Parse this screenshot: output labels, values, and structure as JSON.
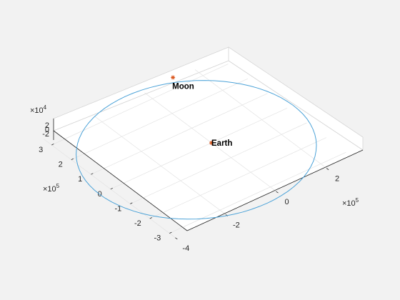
{
  "chart_data": {
    "type": "line3d",
    "title": "",
    "xlabel": "",
    "ylabel": "",
    "zlabel": "",
    "grid": true,
    "axes": {
      "x": {
        "multiplier": "×10",
        "exponent": "5",
        "ticks": [
          "-4",
          "-2",
          "0",
          "2"
        ],
        "tick_values": [
          -4,
          -2,
          0,
          2
        ],
        "range": [
          -4,
          3
        ]
      },
      "y": {
        "multiplier": "×10",
        "exponent": "5",
        "ticks": [
          "-3",
          "-2",
          "-1",
          "0",
          "1",
          "2",
          "3"
        ],
        "tick_values": [
          -3,
          -2,
          -1,
          0,
          1,
          2,
          3
        ],
        "range": [
          -3.4,
          3.4
        ]
      },
      "z": {
        "multiplier": "×10",
        "exponent": "4",
        "ticks": [
          "-2",
          "0",
          "2"
        ],
        "tick_values": [
          -2,
          0,
          2
        ],
        "range": [
          -3,
          3
        ]
      }
    },
    "series": [
      {
        "type": "orbit",
        "color": "#4DA3D8",
        "semi_major_axis": 3.84,
        "semi_minor_axis": 3.62,
        "units": "×10^5",
        "center": [
          -0.6,
          0,
          0
        ]
      }
    ],
    "points": [
      {
        "label": "Moon",
        "marker": "*",
        "color": "#D95319",
        "x": 1.2,
        "y": 3.5,
        "z": 0
      },
      {
        "label": "Earth",
        "marker": "*",
        "color": "#D95319",
        "x": 0,
        "y": 0,
        "z": 0
      }
    ]
  }
}
